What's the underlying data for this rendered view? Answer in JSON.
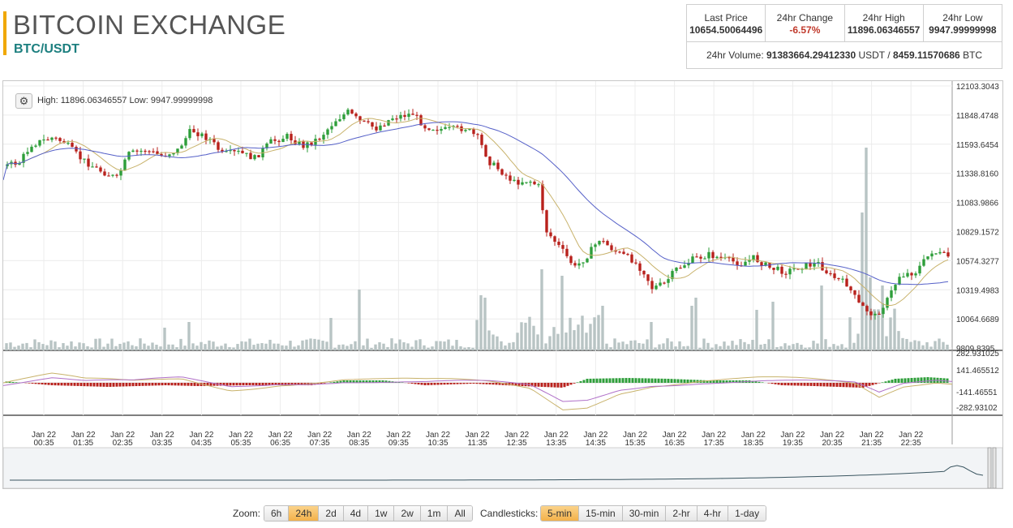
{
  "header": {
    "title": "BITCOIN EXCHANGE",
    "pair": "BTC/USDT"
  },
  "stats": {
    "last_price_label": "Last Price",
    "last_price": "10654.50064496",
    "change_label": "24hr Change",
    "change": "-6.57%",
    "high_label": "24hr High",
    "high": "11896.06346557",
    "low_label": "24hr Low",
    "low": "9947.99999998",
    "volume_label": "24hr Volume:",
    "volume_usdt": "91383664.29412330",
    "usdt_unit": "USDT",
    "separator": "/",
    "volume_btc": "8459.11570686",
    "btc_unit": "BTC"
  },
  "chart": {
    "high_low_text": "High: 11896.06346557  Low: 9947.99999998",
    "gear_icon": "gear-icon",
    "price_axis": [
      "12103.3043",
      "11848.4748",
      "11593.6454",
      "11338.8160",
      "11083.9866",
      "10829.1572",
      "10574.3277",
      "10319.4983",
      "10064.6689",
      "9809.8395"
    ],
    "macd_axis": [
      "282.931025",
      "141.465512",
      "-141.46551",
      "-282.93102"
    ],
    "time_axis": [
      {
        "d": "Jan 22",
        "t": "00:35"
      },
      {
        "d": "Jan 22",
        "t": "01:35"
      },
      {
        "d": "Jan 22",
        "t": "02:35"
      },
      {
        "d": "Jan 22",
        "t": "03:35"
      },
      {
        "d": "Jan 22",
        "t": "04:35"
      },
      {
        "d": "Jan 22",
        "t": "05:35"
      },
      {
        "d": "Jan 22",
        "t": "06:35"
      },
      {
        "d": "Jan 22",
        "t": "07:35"
      },
      {
        "d": "Jan 22",
        "t": "08:35"
      },
      {
        "d": "Jan 22",
        "t": "09:35"
      },
      {
        "d": "Jan 22",
        "t": "10:35"
      },
      {
        "d": "Jan 22",
        "t": "11:35"
      },
      {
        "d": "Jan 22",
        "t": "12:35"
      },
      {
        "d": "Jan 22",
        "t": "13:35"
      },
      {
        "d": "Jan 22",
        "t": "14:35"
      },
      {
        "d": "Jan 22",
        "t": "15:35"
      },
      {
        "d": "Jan 22",
        "t": "16:35"
      },
      {
        "d": "Jan 22",
        "t": "17:35"
      },
      {
        "d": "Jan 22",
        "t": "18:35"
      },
      {
        "d": "Jan 22",
        "t": "19:35"
      },
      {
        "d": "Jan 22",
        "t": "20:35"
      },
      {
        "d": "Jan 22",
        "t": "21:35"
      },
      {
        "d": "Jan 22",
        "t": "22:35"
      }
    ],
    "colors": {
      "up": "#2e9e3a",
      "down": "#b8211c",
      "volume": "#b8c4c4",
      "ma_fast": "#c8b26b",
      "ma_slow": "#5560c8"
    }
  },
  "controls": {
    "zoom_label": "Zoom:",
    "zoom": [
      {
        "label": "6h",
        "active": false
      },
      {
        "label": "24h",
        "active": true
      },
      {
        "label": "2d",
        "active": false
      },
      {
        "label": "4d",
        "active": false
      },
      {
        "label": "1w",
        "active": false
      },
      {
        "label": "2w",
        "active": false
      },
      {
        "label": "1m",
        "active": false
      },
      {
        "label": "All",
        "active": false
      }
    ],
    "candle_label": "Candlesticks:",
    "candles": [
      {
        "label": "5-min",
        "active": true
      },
      {
        "label": "15-min",
        "active": false
      },
      {
        "label": "30-min",
        "active": false
      },
      {
        "label": "2-hr",
        "active": false
      },
      {
        "label": "4-hr",
        "active": false
      },
      {
        "label": "1-day",
        "active": false
      }
    ]
  }
}
